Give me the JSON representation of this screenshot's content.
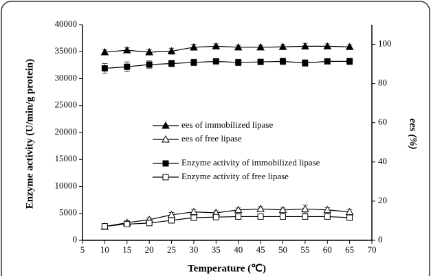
{
  "chart_data": {
    "type": "line",
    "xlabel": "Temperature (℃)",
    "ylabel": "Enzyme activity (U/min/g protein)",
    "y2label": "ees (%)",
    "x": [
      10,
      15,
      20,
      25,
      30,
      35,
      40,
      45,
      50,
      55,
      60,
      65
    ],
    "xlim": [
      5,
      70
    ],
    "xticks": [
      5,
      10,
      15,
      20,
      25,
      30,
      35,
      40,
      45,
      50,
      55,
      60,
      65,
      70
    ],
    "ylim": [
      0,
      40000
    ],
    "yticks": [
      0,
      5000,
      10000,
      15000,
      20000,
      25000,
      30000,
      35000,
      40000
    ],
    "y2lim": [
      0,
      110
    ],
    "y2ticks": [
      0,
      20,
      40,
      60,
      80,
      100
    ],
    "legend": "center",
    "series": [
      {
        "name": "ees of immobilized lipase",
        "color": "#000000",
        "marker": "filled-triangle",
        "axis": "y2",
        "values": [
          96,
          97,
          96,
          96.5,
          98.5,
          99,
          98.5,
          98.5,
          98.7,
          99,
          99,
          98.7
        ],
        "errors": [
          1.2,
          1.2,
          1.2,
          1.5,
          1.5,
          1.2,
          1,
          1,
          1.2,
          1.5,
          1.2,
          1
        ]
      },
      {
        "name": "ees of free lipase",
        "color": "#000000",
        "marker": "open-triangle",
        "axis": "y2",
        "values": [
          7,
          9,
          10.5,
          13,
          14.5,
          14,
          15.5,
          16,
          15.5,
          16,
          15.5,
          14.5
        ],
        "errors": [
          1,
          1,
          1,
          1.2,
          1.2,
          1,
          1,
          1.2,
          1,
          2,
          1.2,
          1.2
        ]
      },
      {
        "name": "Enzyme activity of immobilized lipase",
        "color": "#000000",
        "marker": "filled-square",
        "values": [
          31900,
          32200,
          32600,
          32800,
          33000,
          33200,
          33000,
          33100,
          33200,
          32900,
          33200,
          33200
        ],
        "errors": [
          900,
          900,
          700,
          600,
          600,
          400,
          600,
          400,
          600,
          600,
          400,
          600
        ]
      },
      {
        "name": "Enzyme activity of free lipase",
        "color": "#000000",
        "marker": "open-square",
        "values": [
          2600,
          3000,
          3200,
          3700,
          4200,
          4300,
          4400,
          4400,
          4400,
          4400,
          4400,
          4200
        ],
        "errors": [
          200,
          200,
          200,
          200,
          200,
          200,
          200,
          200,
          200,
          200,
          200,
          200
        ]
      }
    ]
  }
}
